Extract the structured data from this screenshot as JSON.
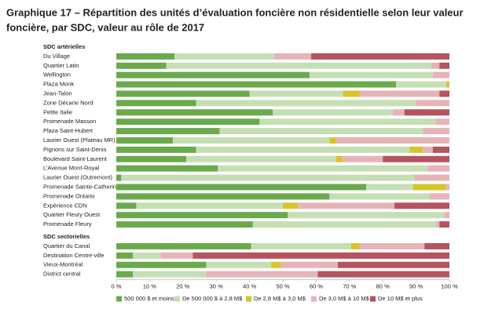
{
  "chart_data": {
    "type": "stacked-bar-horizontal",
    "title": "Graphique 17 – Répartition des unités d’évaluation foncière non résidentielle selon leur valeur",
    "subtitle": "foncière, par SDC, valeur au rôle de 2017",
    "categories": [
      "SDC artérielles",
      "Du Village",
      "Quartier Latin",
      "Wellington",
      "Plaza Monk",
      "Jean-Talon",
      "Zone Décarie Nord",
      "Petite Italie",
      "Promenade Masson",
      "Plaza Saint-Hubert",
      "Laurier Ouest (Plateau MR)",
      "Pignons sur Saint-Denis",
      "Boulevard Saint-Laurent",
      "L’Avenue Mont-Royal",
      "Laurier Ouest (Outremont)",
      "Promenade Sainte-Catherine",
      "Promenade Ontario",
      "Expérience CDN",
      "Quartier Fleury Ouest",
      "Promenade Fleury",
      "SDC sectorielles",
      "Quartier du Canal",
      "Destination Centre-ville",
      "Vieux-Montréal",
      "District central"
    ],
    "series": [
      {
        "name": "500 000 $ et moins",
        "color": "#6aaa4c",
        "values": [
          null,
          17.5,
          15,
          58,
          84,
          40,
          24,
          47,
          43,
          31,
          17,
          24,
          21,
          30.5,
          1.5,
          75,
          64,
          6,
          51.5,
          41,
          null,
          40.5,
          5,
          27,
          5
        ]
      },
      {
        "name": "De 500 000 $ à 2,8 M$",
        "color": "#c5dfb4",
        "values": [
          null,
          30,
          79.5,
          37,
          15,
          28,
          66,
          36,
          53,
          61,
          47,
          64,
          45,
          63,
          88,
          14,
          30,
          44,
          47,
          55,
          null,
          30,
          8.5,
          19.5,
          22
        ]
      },
      {
        "name": "De 2,8 M$ à 3,0 M$",
        "color": "#d6c52a",
        "values": [
          null,
          0,
          0,
          0,
          1,
          5,
          0,
          0,
          0,
          0,
          2,
          4,
          2,
          0,
          0,
          10,
          0,
          4.5,
          0,
          0,
          null,
          2.5,
          0,
          3,
          0
        ]
      },
      {
        "name": "De 3,0 M$ à 10 M$",
        "color": "#e6b4b8",
        "values": [
          null,
          11,
          2.5,
          5,
          0,
          24,
          10,
          3.5,
          4,
          8,
          34,
          3,
          12,
          6.5,
          10.5,
          1,
          6,
          29,
          1.5,
          1,
          null,
          19.5,
          9.5,
          17,
          33.5
        ]
      },
      {
        "name": "De 10 M$ et plus",
        "color": "#b5535e",
        "values": [
          null,
          41.5,
          3,
          0,
          0,
          3,
          0,
          13.5,
          0,
          0,
          0,
          5,
          20,
          0,
          0,
          0,
          0,
          16.5,
          0,
          3,
          null,
          7.5,
          77,
          33.5,
          39.5
        ]
      }
    ],
    "xlim": [
      0,
      100
    ],
    "xticks": [
      {
        "value": 0,
        "label": "0 %"
      },
      {
        "value": 10,
        "label": "10 %"
      },
      {
        "value": 20,
        "label": "20 %"
      },
      {
        "value": 30,
        "label": "30 %"
      },
      {
        "value": 40,
        "label": "40 %"
      },
      {
        "value": 50,
        "label": "50 %"
      },
      {
        "value": 60,
        "label": "60 %"
      },
      {
        "value": 70,
        "label": "70 %"
      },
      {
        "value": 80,
        "label": "80 %"
      },
      {
        "value": 90,
        "label": "90 %"
      },
      {
        "value": 100,
        "label": "100 %"
      }
    ],
    "legend": "bottom"
  }
}
